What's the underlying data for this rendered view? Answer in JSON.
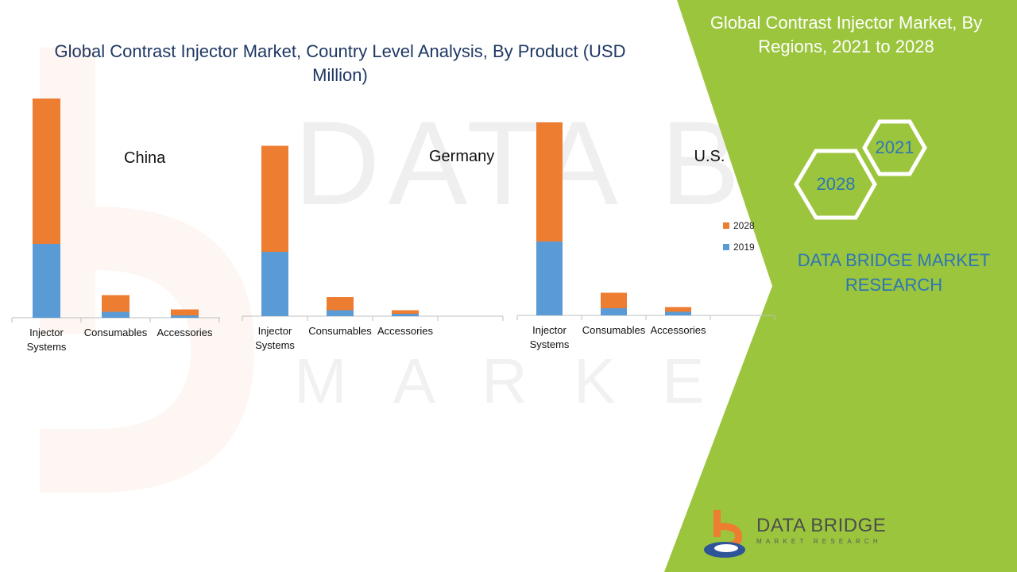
{
  "title": "Global Contrast Injector Market, Country Level Analysis, By Product (USD Million)",
  "side_panel": {
    "title": "Global Contrast Injector Market, By Regions, 2021 to 2028",
    "hex_top": "2021",
    "hex_bottom": "2028",
    "brand": "DATA BRIDGE MARKET RESEARCH",
    "green": "#9bc53d"
  },
  "watermark": {
    "main": "DATA BRIDGE",
    "sub": "MARKET RESEARCH"
  },
  "logo": {
    "name": "DATA BRIDGE",
    "tagline": "MARKET RESEARCH"
  },
  "legend": [
    "2028",
    "2019"
  ],
  "colors": {
    "2019": "#5b9bd5",
    "2028": "#ed7d31"
  },
  "chart_data": [
    {
      "type": "bar",
      "stacked": true,
      "title": "China",
      "categories": [
        "Injector Systems",
        "Consumables",
        "Accessories"
      ],
      "series": [
        {
          "name": "2019",
          "values": [
            62,
            5,
            2
          ]
        },
        {
          "name": "2028",
          "values": [
            122,
            14,
            5
          ]
        }
      ],
      "ylim": [
        0,
        200
      ]
    },
    {
      "type": "bar",
      "stacked": true,
      "title": "Germany",
      "categories": [
        "Injector Systems",
        "Consumables",
        "Accessories",
        ""
      ],
      "series": [
        {
          "name": "2019",
          "values": [
            54,
            5,
            2,
            0
          ]
        },
        {
          "name": "2028",
          "values": [
            89,
            11,
            3,
            0
          ]
        }
      ],
      "ylim": [
        0,
        200
      ]
    },
    {
      "type": "bar",
      "stacked": true,
      "title": "U.S.",
      "categories": [
        "Injector Systems",
        "Consumables",
        "Accessories",
        ""
      ],
      "series": [
        {
          "name": "2019",
          "values": [
            62,
            6,
            3,
            0
          ]
        },
        {
          "name": "2028",
          "values": [
            100,
            13,
            4,
            0
          ]
        }
      ],
      "ylim": [
        0,
        200
      ]
    }
  ]
}
